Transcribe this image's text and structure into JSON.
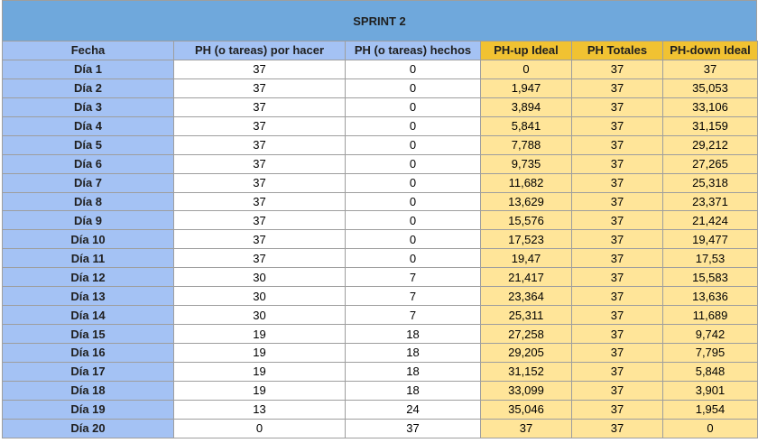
{
  "sheet": {
    "title": "SPRINT 2",
    "headers": [
      "Fecha",
      "PH (o tareas) por hacer",
      "PH (o tareas) hechos",
      "PH-up Ideal",
      "PH Totales",
      "PH-down Ideal"
    ],
    "rows": [
      [
        "Día 1",
        "37",
        "0",
        "0",
        "37",
        "37"
      ],
      [
        "Día 2",
        "37",
        "0",
        "1,947",
        "37",
        "35,053"
      ],
      [
        "Día 3",
        "37",
        "0",
        "3,894",
        "37",
        "33,106"
      ],
      [
        "Día 4",
        "37",
        "0",
        "5,841",
        "37",
        "31,159"
      ],
      [
        "Día 5",
        "37",
        "0",
        "7,788",
        "37",
        "29,212"
      ],
      [
        "Día 6",
        "37",
        "0",
        "9,735",
        "37",
        "27,265"
      ],
      [
        "Día 7",
        "37",
        "0",
        "11,682",
        "37",
        "25,318"
      ],
      [
        "Día 8",
        "37",
        "0",
        "13,629",
        "37",
        "23,371"
      ],
      [
        "Día 9",
        "37",
        "0",
        "15,576",
        "37",
        "21,424"
      ],
      [
        "Día 10",
        "37",
        "0",
        "17,523",
        "37",
        "19,477"
      ],
      [
        "Día 11",
        "37",
        "0",
        "19,47",
        "37",
        "17,53"
      ],
      [
        "Día 12",
        "30",
        "7",
        "21,417",
        "37",
        "15,583"
      ],
      [
        "Día 13",
        "30",
        "7",
        "23,364",
        "37",
        "13,636"
      ],
      [
        "Día 14",
        "30",
        "7",
        "25,311",
        "37",
        "11,689"
      ],
      [
        "Día 15",
        "19",
        "18",
        "27,258",
        "37",
        "9,742"
      ],
      [
        "Día 16",
        "19",
        "18",
        "29,205",
        "37",
        "7,795"
      ],
      [
        "Día 17",
        "19",
        "18",
        "31,152",
        "37",
        "5,848"
      ],
      [
        "Día 18",
        "19",
        "18",
        "33,099",
        "37",
        "3,901"
      ],
      [
        "Día 19",
        "13",
        "24",
        "35,046",
        "37",
        "1,954"
      ],
      [
        "Día 20",
        "0",
        "37",
        "37",
        "37",
        "0"
      ]
    ]
  },
  "colors": {
    "title_bg": "#6fa8dc",
    "header_blue": "#a4c2f4",
    "header_gold": "#f1c232",
    "cell_gold": "#ffe599",
    "grid": "#9e9e9e"
  }
}
